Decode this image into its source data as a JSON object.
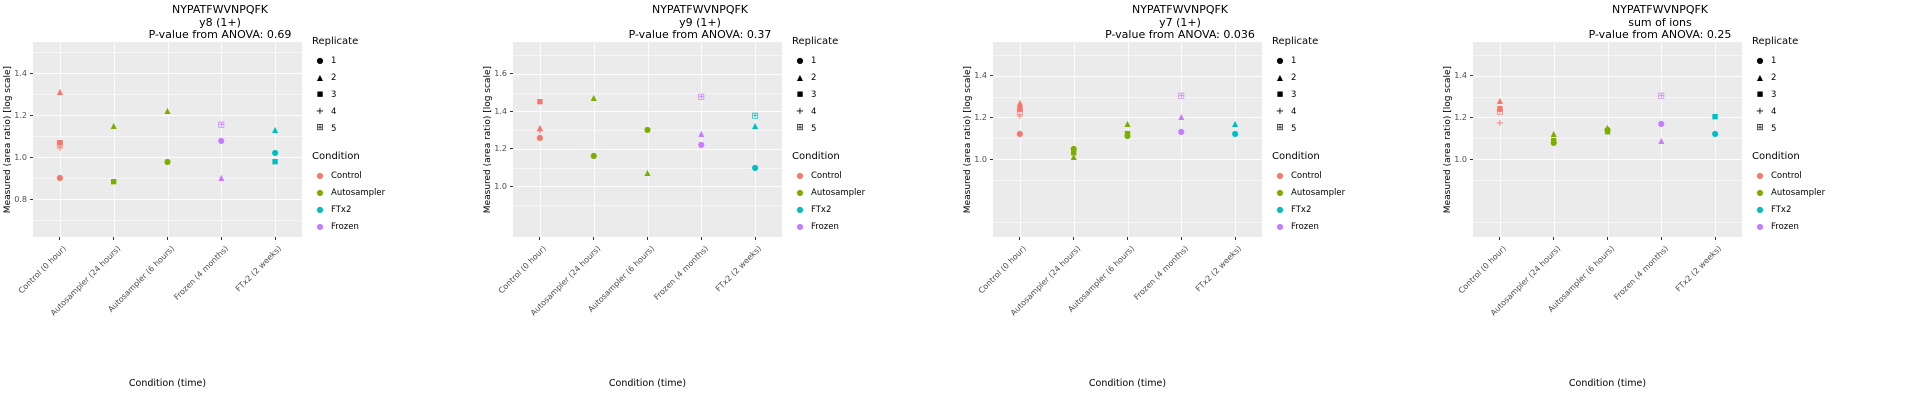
{
  "figure": {
    "background": "#FFFFFF",
    "panel_background": "#EBEBEB",
    "grid_color": "#FFFFFF",
    "tick_color": "#333333",
    "tick_label_color": "#4D4D4D"
  },
  "legend": {
    "replicate_title": "Replicate",
    "replicates": [
      {
        "label": "1",
        "shape": "circle",
        "glyph": "●"
      },
      {
        "label": "2",
        "shape": "triangle",
        "glyph": "▲"
      },
      {
        "label": "3",
        "shape": "square",
        "glyph": "■"
      },
      {
        "label": "4",
        "shape": "plus",
        "glyph": "+"
      },
      {
        "label": "5",
        "shape": "square-plus",
        "glyph": "⊞"
      }
    ],
    "condition_title": "Condition",
    "condition_marker_glyph": "●",
    "conditions": [
      {
        "label": "Control",
        "color": "#F8766D"
      },
      {
        "label": "Autosampler",
        "color": "#7CAE00"
      },
      {
        "label": "FTx2",
        "color": "#00BFC4"
      },
      {
        "label": "Frozen",
        "color": "#C77CFF"
      }
    ]
  },
  "chart_data": [
    {
      "type": "scatter",
      "title": "NYPATFWVNPQFK",
      "subtitle": "y8 (1+)",
      "pvalue_line": "P-value from ANOVA: 0.69",
      "xlabel": "Condition (time)",
      "ylabel": "Measured (area ratio) [log scale]",
      "categories": [
        "Control (0 hour)",
        "Autosampler (24 hours)",
        "Autosampler (6 hours)",
        "Frozen (4 months)",
        "FTx2 (2 weeks)"
      ],
      "yticks": [
        "0.8",
        "1.0",
        "1.2",
        "1.4"
      ],
      "ylim": [
        0.62,
        1.55
      ],
      "points": [
        {
          "category": 0,
          "condition": "Control",
          "replicate": 1,
          "value": 0.9
        },
        {
          "category": 0,
          "condition": "Control",
          "replicate": 2,
          "value": 1.31
        },
        {
          "category": 0,
          "condition": "Control",
          "replicate": 3,
          "value": 1.07
        },
        {
          "category": 0,
          "condition": "Control",
          "replicate": 4,
          "value": 1.04
        },
        {
          "category": 0,
          "condition": "Control",
          "replicate": 5,
          "value": 1.06
        },
        {
          "category": 1,
          "condition": "Autosampler",
          "replicate": 2,
          "value": 1.15
        },
        {
          "category": 1,
          "condition": "Autosampler",
          "replicate": 3,
          "value": 0.88
        },
        {
          "category": 2,
          "condition": "Autosampler",
          "replicate": 2,
          "value": 1.22
        },
        {
          "category": 2,
          "condition": "Autosampler",
          "replicate": 1,
          "value": 0.98
        },
        {
          "category": 3,
          "condition": "Frozen",
          "replicate": 5,
          "value": 1.15
        },
        {
          "category": 3,
          "condition": "Frozen",
          "replicate": 1,
          "value": 1.08
        },
        {
          "category": 3,
          "condition": "Frozen",
          "replicate": 2,
          "value": 0.9
        },
        {
          "category": 4,
          "condition": "FTx2",
          "replicate": 2,
          "value": 1.13
        },
        {
          "category": 4,
          "condition": "FTx2",
          "replicate": 1,
          "value": 1.02
        },
        {
          "category": 4,
          "condition": "FTx2",
          "replicate": 3,
          "value": 0.98
        }
      ]
    },
    {
      "type": "scatter",
      "title": "NYPATFWVNPQFK",
      "subtitle": "y9 (1+)",
      "pvalue_line": "P-value from ANOVA: 0.37",
      "xlabel": "Condition (time)",
      "ylabel": "Measured (area ratio) [log scale]",
      "categories": [
        "Control (0 hour)",
        "Autosampler (24 hours)",
        "Autosampler (6 hours)",
        "Frozen (4 months)",
        "FTx2 (2 weeks)"
      ],
      "yticks": [
        "1.0",
        "1.2",
        "1.4",
        "1.6"
      ],
      "ylim": [
        0.73,
        1.77
      ],
      "points": [
        {
          "category": 0,
          "condition": "Control",
          "replicate": 3,
          "value": 1.45
        },
        {
          "category": 0,
          "condition": "Control",
          "replicate": 4,
          "value": 1.29
        },
        {
          "category": 0,
          "condition": "Control",
          "replicate": 2,
          "value": 1.31
        },
        {
          "category": 0,
          "condition": "Control",
          "replicate": 1,
          "value": 1.26
        },
        {
          "category": 1,
          "condition": "Autosampler",
          "replicate": 2,
          "value": 1.47
        },
        {
          "category": 1,
          "condition": "Autosampler",
          "replicate": 1,
          "value": 1.16
        },
        {
          "category": 2,
          "condition": "Autosampler",
          "replicate": 1,
          "value": 1.3
        },
        {
          "category": 2,
          "condition": "Autosampler",
          "replicate": 2,
          "value": 1.07
        },
        {
          "category": 3,
          "condition": "Frozen",
          "replicate": 5,
          "value": 1.47
        },
        {
          "category": 3,
          "condition": "Frozen",
          "replicate": 2,
          "value": 1.28
        },
        {
          "category": 3,
          "condition": "Frozen",
          "replicate": 1,
          "value": 1.22
        },
        {
          "category": 4,
          "condition": "FTx2",
          "replicate": 5,
          "value": 1.37
        },
        {
          "category": 4,
          "condition": "FTx2",
          "replicate": 2,
          "value": 1.32
        },
        {
          "category": 4,
          "condition": "FTx2",
          "replicate": 1,
          "value": 1.1
        }
      ]
    },
    {
      "type": "scatter",
      "title": "NYPATFWVNPQFK",
      "subtitle": "y7 (1+)",
      "pvalue_line": "P-value from ANOVA: 0.036",
      "xlabel": "Condition (time)",
      "ylabel": "Measured (area ratio) [log scale]",
      "categories": [
        "Control (0 hour)",
        "Autosampler (24 hours)",
        "Autosampler (6 hours)",
        "Frozen (4 months)",
        "FTx2 (2 weeks)"
      ],
      "yticks": [
        "1.0",
        "1.2",
        "1.4"
      ],
      "ylim": [
        0.63,
        1.56
      ],
      "points": [
        {
          "category": 0,
          "condition": "Control",
          "replicate": 2,
          "value": 1.27
        },
        {
          "category": 0,
          "condition": "Control",
          "replicate": 3,
          "value": 1.24
        },
        {
          "category": 0,
          "condition": "Control",
          "replicate": 5,
          "value": 1.22
        },
        {
          "category": 0,
          "condition": "Control",
          "replicate": 4,
          "value": 1.2
        },
        {
          "category": 0,
          "condition": "Control",
          "replicate": 1,
          "value": 1.12
        },
        {
          "category": 1,
          "condition": "Autosampler",
          "replicate": 1,
          "value": 1.05
        },
        {
          "category": 1,
          "condition": "Autosampler",
          "replicate": 3,
          "value": 1.03
        },
        {
          "category": 1,
          "condition": "Autosampler",
          "replicate": 2,
          "value": 1.01
        },
        {
          "category": 2,
          "condition": "Autosampler",
          "replicate": 2,
          "value": 1.17
        },
        {
          "category": 2,
          "condition": "Autosampler",
          "replicate": 3,
          "value": 1.12
        },
        {
          "category": 2,
          "condition": "Autosampler",
          "replicate": 1,
          "value": 1.11
        },
        {
          "category": 3,
          "condition": "Frozen",
          "replicate": 5,
          "value": 1.3
        },
        {
          "category": 3,
          "condition": "Frozen",
          "replicate": 2,
          "value": 1.2
        },
        {
          "category": 3,
          "condition": "Frozen",
          "replicate": 1,
          "value": 1.13
        },
        {
          "category": 4,
          "condition": "FTx2",
          "replicate": 2,
          "value": 1.17
        },
        {
          "category": 4,
          "condition": "FTx2",
          "replicate": 1,
          "value": 1.12
        }
      ]
    },
    {
      "type": "scatter",
      "title": "NYPATFWVNPQFK",
      "subtitle": "sum of ions",
      "pvalue_line": "P-value from ANOVA: 0.25",
      "xlabel": "Condition (time)",
      "ylabel": "Measured (area ratio) [log scale]",
      "categories": [
        "Control (0 hour)",
        "Autosampler (24 hours)",
        "Autosampler (6 hours)",
        "Frozen (4 months)",
        "FTx2 (2 weeks)"
      ],
      "yticks": [
        "1.0",
        "1.2",
        "1.4"
      ],
      "ylim": [
        0.63,
        1.56
      ],
      "points": [
        {
          "category": 0,
          "condition": "Control",
          "replicate": 2,
          "value": 1.28
        },
        {
          "category": 0,
          "condition": "Control",
          "replicate": 3,
          "value": 1.24
        },
        {
          "category": 0,
          "condition": "Control",
          "replicate": 5,
          "value": 1.22
        },
        {
          "category": 0,
          "condition": "Control",
          "replicate": 4,
          "value": 1.17
        },
        {
          "category": 1,
          "condition": "Autosampler",
          "replicate": 2,
          "value": 1.12
        },
        {
          "category": 1,
          "condition": "Autosampler",
          "replicate": 3,
          "value": 1.09
        },
        {
          "category": 1,
          "condition": "Autosampler",
          "replicate": 1,
          "value": 1.08
        },
        {
          "category": 2,
          "condition": "Autosampler",
          "replicate": 2,
          "value": 1.15
        },
        {
          "category": 2,
          "condition": "Autosampler",
          "replicate": 1,
          "value": 1.14
        },
        {
          "category": 2,
          "condition": "Autosampler",
          "replicate": 3,
          "value": 1.13
        },
        {
          "category": 3,
          "condition": "Frozen",
          "replicate": 5,
          "value": 1.3
        },
        {
          "category": 3,
          "condition": "Frozen",
          "replicate": 1,
          "value": 1.17
        },
        {
          "category": 3,
          "condition": "Frozen",
          "replicate": 2,
          "value": 1.09
        },
        {
          "category": 4,
          "condition": "FTx2",
          "replicate": 3,
          "value": 1.2
        },
        {
          "category": 4,
          "condition": "FTx2",
          "replicate": 1,
          "value": 1.12
        }
      ]
    }
  ]
}
